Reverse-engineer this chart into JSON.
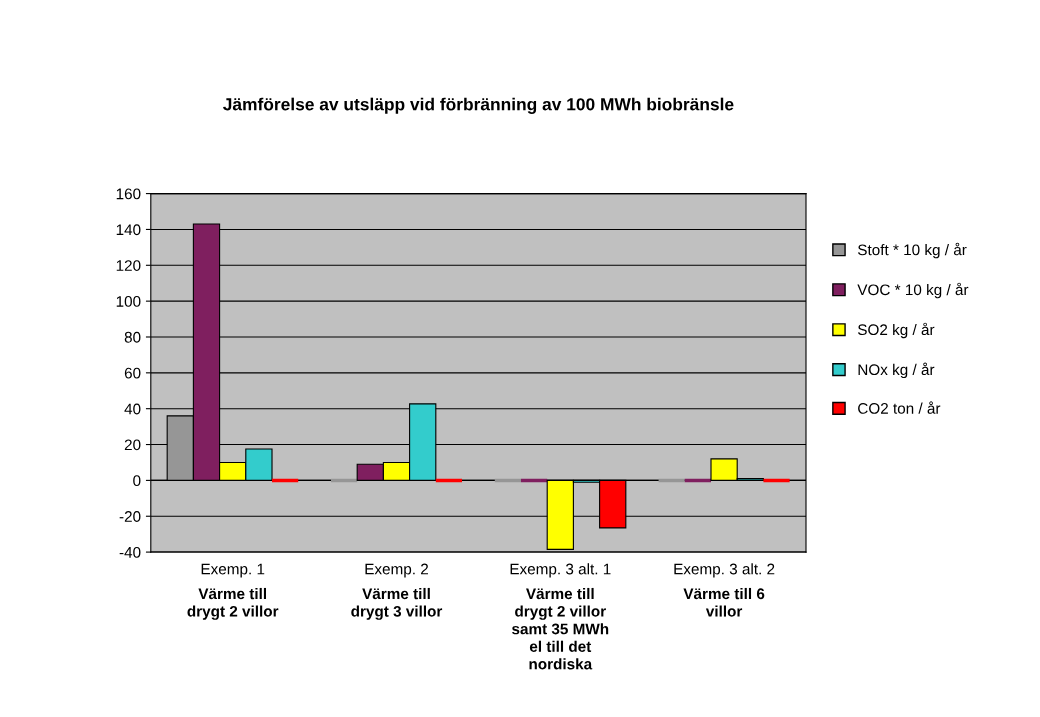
{
  "chart_data": {
    "type": "bar",
    "title": "Jämförelse av utsläpp vid förbränning av 100 MWh biobränsle",
    "categories": [
      "Exemp. 1",
      "Exemp. 2",
      "Exemp. 3 alt. 1",
      "Exemp. 3 alt. 2"
    ],
    "annotations": [
      "Värme till\ndrygt 2 villor",
      "Värme till\ndrygt 3 villor",
      "Värme till\ndrygt 2 villor\nsamt 35 MWh\nel till det\nnordiska",
      "Värme till 6\nvillor"
    ],
    "series": [
      {
        "name": "Stoft * 10 kg / år",
        "color": "#969696",
        "values": [
          36,
          0,
          0,
          0
        ]
      },
      {
        "name": "VOC * 10 kg / år",
        "color": "#7f1f5f",
        "values": [
          143,
          9,
          0,
          0
        ]
      },
      {
        "name": "SO2 kg / år",
        "color": "#ffff00",
        "values": [
          10,
          10,
          -38.5,
          12
        ]
      },
      {
        "name": "NOx kg / år",
        "color": "#33cccc",
        "values": [
          17.5,
          42.7,
          -1,
          1
        ]
      },
      {
        "name": "CO2 ton / år",
        "color": "#ff0000",
        "values": [
          0,
          0,
          -26.5,
          0
        ]
      }
    ],
    "ylim": [
      -40,
      160
    ],
    "yticks": [
      -40,
      -20,
      0,
      20,
      40,
      60,
      80,
      100,
      120,
      140,
      160
    ],
    "grid": "y",
    "legend": "right"
  }
}
